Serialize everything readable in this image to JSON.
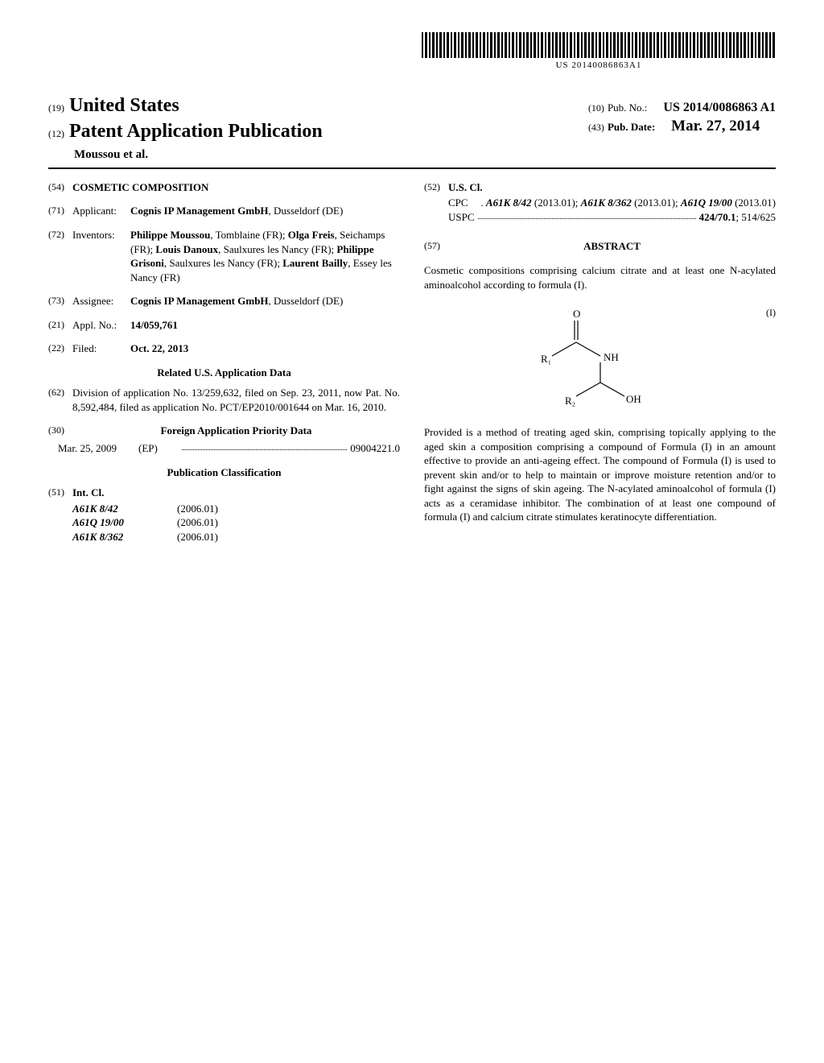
{
  "barcode_text": "US 20140086863A1",
  "header": {
    "kind19": "(19)",
    "country": "United States",
    "kind12": "(12)",
    "doc_type": "Patent Application Publication",
    "authors": "Moussou et al.",
    "pub_no_code": "(10)",
    "pub_no_label": "Pub. No.:",
    "pub_no_value": "US 2014/0086863 A1",
    "pub_date_code": "(43)",
    "pub_date_label": "Pub. Date:",
    "pub_date_value": "Mar. 27, 2014"
  },
  "left": {
    "title": {
      "code": "(54)",
      "value": "COSMETIC COMPOSITION"
    },
    "applicant": {
      "code": "(71)",
      "label": "Applicant:",
      "value_html": "<b>Cognis IP Management GmbH</b>, Dusseldorf (DE)"
    },
    "inventors": {
      "code": "(72)",
      "label": "Inventors:",
      "value_html": "<b>Philippe Moussou</b>, Tomblaine (FR); <b>Olga Freis</b>, Seichamps (FR); <b>Louis Danoux</b>, Saulxures les Nancy (FR); <b>Philippe Grisoni</b>, Saulxures les Nancy (FR); <b>Laurent Bailly</b>, Essey les Nancy (FR)"
    },
    "assignee": {
      "code": "(73)",
      "label": "Assignee:",
      "value_html": "<b>Cognis IP Management GmbH</b>, Dusseldorf (DE)"
    },
    "appl_no": {
      "code": "(21)",
      "label": "Appl. No.:",
      "value_html": "<b>14/059,761</b>"
    },
    "filed": {
      "code": "(22)",
      "label": "Filed:",
      "value_html": "<b>Oct. 22, 2013</b>"
    },
    "related_heading": "Related U.S. Application Data",
    "related": {
      "code": "(62)",
      "text": "Division of application No. 13/259,632, filed on Sep. 23, 2011, now Pat. No. 8,592,484, filed as application No. PCT/EP2010/001644 on Mar. 16, 2010."
    },
    "foreign_heading": "Foreign Application Priority Data",
    "foreign_code": "(30)",
    "priority": {
      "date": "Mar. 25, 2009",
      "cc": "(EP)",
      "number": "09004221.0"
    },
    "pubclass_heading": "Publication Classification",
    "intcl": {
      "code": "(51)",
      "label": "Int. Cl.",
      "rows": [
        {
          "code": "A61K 8/42",
          "date": "(2006.01)"
        },
        {
          "code": "A61Q 19/00",
          "date": "(2006.01)"
        },
        {
          "code": "A61K 8/362",
          "date": "(2006.01)"
        }
      ]
    }
  },
  "right": {
    "uscl": {
      "code": "(52)",
      "label": "U.S. Cl.",
      "cpc_prefix": "CPC",
      "cpc_html": ". <b><i>A61K 8/42</i></b> (2013.01); <b><i>A61K 8/362</i></b> (2013.01); <b><i>A61Q 19/00</i></b> (2013.01)",
      "uspc_prefix": "USPC",
      "uspc_value_html": "<b>424/70.1</b>; 514/625"
    },
    "abstract_code": "(57)",
    "abstract_heading": "ABSTRACT",
    "abstract_p1": "Cosmetic compositions comprising calcium citrate and at least one N-acylated aminoalcohol according to formula (I).",
    "formula_label": "(I)",
    "formula": {
      "r1": "R₁",
      "r2": "R₂",
      "o": "O",
      "nh": "NH",
      "oh": "OH"
    },
    "abstract_p2": "Provided is a method of treating aged skin, comprising topically applying to the aged skin a composition comprising a compound of Formula (I) in an amount effective to provide an anti-ageing effect. The compound of Formula (I) is used to prevent skin and/or to help to maintain or improve moisture retention and/or to fight against the signs of skin ageing. The N-acylated aminoalcohol of formula (I) acts as a ceramidase inhibitor. The combination of at least one compound of formula (I) and calcium citrate stimulates keratinocyte differentiation."
  }
}
